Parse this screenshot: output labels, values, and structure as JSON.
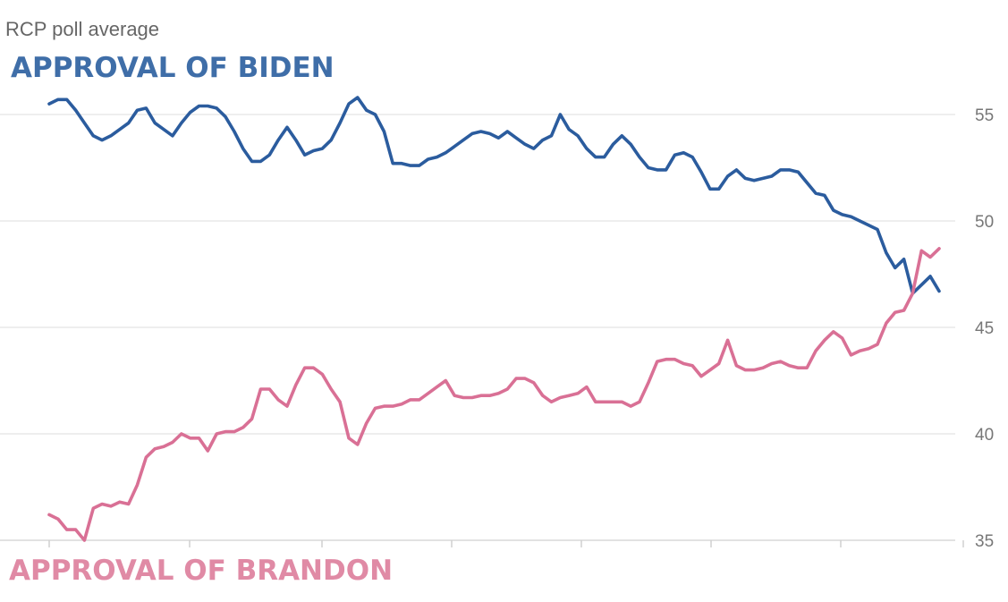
{
  "header": {
    "subtitle": "RCP poll average"
  },
  "colors": {
    "biden": "#2b5c9e",
    "biden_label": "#3f6ea8",
    "brandon": "#d97095",
    "brandon_label": "#e08aa5",
    "grid": "#e8e8e8",
    "tick_text": "#777777"
  },
  "chart_data": {
    "type": "line",
    "subtitle": "RCP poll average",
    "ylim": [
      35,
      57
    ],
    "y_ticks": [
      "55",
      "50",
      "45",
      "40",
      "35"
    ],
    "y_axis_side": "right",
    "grid": true,
    "series": [
      {
        "name": "APPROVAL OF BIDEN",
        "color": "#2b5c9e",
        "values": [
          55.5,
          55.7,
          55.7,
          55.2,
          54.6,
          54.0,
          53.8,
          54.0,
          54.3,
          54.6,
          55.2,
          55.3,
          54.6,
          54.3,
          54.0,
          54.6,
          55.1,
          55.4,
          55.4,
          55.3,
          54.9,
          54.2,
          53.4,
          52.8,
          52.8,
          53.1,
          53.8,
          54.4,
          53.8,
          53.1,
          53.3,
          53.4,
          53.8,
          54.6,
          55.5,
          55.8,
          55.2,
          55.0,
          54.2,
          52.7,
          52.7,
          52.6,
          52.6,
          52.9,
          53.0,
          53.2,
          53.5,
          53.8,
          54.1,
          54.2,
          54.1,
          53.9,
          54.2,
          53.9,
          53.6,
          53.4,
          53.8,
          54.0,
          55.0,
          54.3,
          54.0,
          53.4,
          53.0,
          53.0,
          53.6,
          54.0,
          53.6,
          53.0,
          52.5,
          52.4,
          52.4,
          53.1,
          53.2,
          53.0,
          52.3,
          51.5,
          51.5,
          52.1,
          52.4,
          52.0,
          51.9,
          52.0,
          52.1,
          52.4,
          52.4,
          52.3,
          51.8,
          51.3,
          51.2,
          50.5,
          50.3,
          50.2,
          50.0,
          49.8,
          49.6,
          48.5,
          47.8,
          48.2,
          46.6,
          47.0,
          47.4,
          46.7
        ],
        "label_position": "top-left"
      },
      {
        "name": "APPROVAL OF BRANDON",
        "color": "#d97095",
        "values": [
          36.2,
          36.0,
          35.5,
          35.5,
          35.0,
          36.5,
          36.7,
          36.6,
          36.8,
          36.7,
          37.6,
          38.9,
          39.3,
          39.4,
          39.6,
          40.0,
          39.8,
          39.8,
          39.2,
          40.0,
          40.1,
          40.1,
          40.3,
          40.7,
          42.1,
          42.1,
          41.6,
          41.3,
          42.3,
          43.1,
          43.1,
          42.8,
          42.1,
          41.5,
          39.8,
          39.5,
          40.5,
          41.2,
          41.3,
          41.3,
          41.4,
          41.6,
          41.6,
          41.9,
          42.2,
          42.5,
          41.8,
          41.7,
          41.7,
          41.8,
          41.8,
          41.9,
          42.1,
          42.6,
          42.6,
          42.4,
          41.8,
          41.5,
          41.7,
          41.8,
          41.9,
          42.2,
          41.5,
          41.5,
          41.5,
          41.5,
          41.3,
          41.5,
          42.4,
          43.4,
          43.5,
          43.5,
          43.3,
          43.2,
          42.7,
          43.0,
          43.3,
          44.4,
          43.2,
          43.0,
          43.0,
          43.1,
          43.3,
          43.4,
          43.2,
          43.1,
          43.1,
          43.9,
          44.4,
          44.8,
          44.5,
          43.7,
          43.9,
          44.0,
          44.2,
          45.2,
          45.7,
          45.8,
          46.6,
          48.6,
          48.3,
          48.7
        ],
        "label_position": "bottom-left"
      }
    ]
  }
}
